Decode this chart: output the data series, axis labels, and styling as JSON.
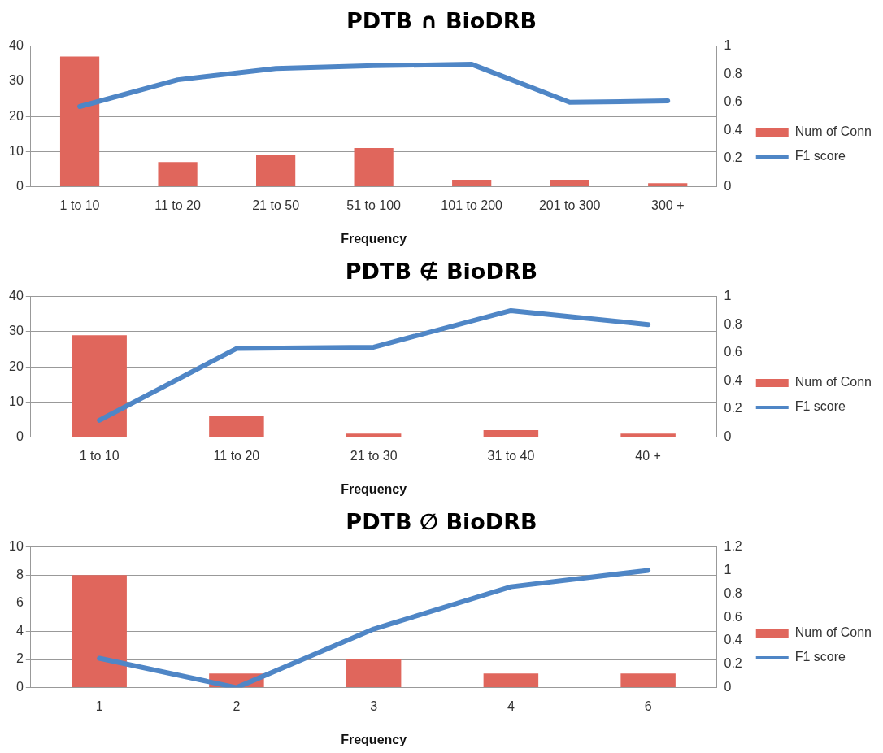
{
  "chart_data": [
    {
      "type": "bar",
      "title": "PDTB ∩ BioDRB",
      "xlabel": "Frequency",
      "categories": [
        "1 to 10",
        "11 to 20",
        "21 to 50",
        "51 to 100",
        "101 to 200",
        "201 to 300",
        "300 +"
      ],
      "series": [
        {
          "name": "Num of Conn",
          "color": "#e0665c",
          "values": [
            37,
            7,
            9,
            11,
            2,
            2,
            1
          ]
        },
        {
          "name": "F1 score",
          "type": "line",
          "axis": "y2",
          "color": "#4f86c6",
          "values": [
            0.57,
            0.76,
            0.84,
            0.86,
            0.87,
            0.6,
            0.61
          ]
        }
      ],
      "ylim": [
        0,
        40
      ],
      "yticks": [
        0,
        10,
        20,
        30,
        40
      ],
      "y2lim": [
        0,
        1
      ],
      "y2ticks": [
        0,
        0.2,
        0.4,
        0.6,
        0.8,
        1
      ],
      "grid": "y",
      "legend": "right",
      "marker": "none"
    },
    {
      "type": "bar",
      "title": "PDTB ∉ BioDRB",
      "xlabel": "Frequency",
      "categories": [
        "1 to 10",
        "11 to 20",
        "21 to 30",
        "31 to 40",
        "40 +"
      ],
      "series": [
        {
          "name": "Num of Conn",
          "color": "#e0665c",
          "values": [
            29,
            6,
            1,
            2,
            1
          ]
        },
        {
          "name": "F1 score",
          "type": "line",
          "axis": "y2",
          "color": "#4f86c6",
          "values": [
            0.12,
            0.63,
            0.64,
            0.9,
            0.8
          ]
        }
      ],
      "ylim": [
        0,
        40
      ],
      "yticks": [
        0,
        10,
        20,
        30,
        40
      ],
      "y2lim": [
        0,
        1
      ],
      "y2ticks": [
        0,
        0.2,
        0.4,
        0.6,
        0.8,
        1
      ],
      "grid": "y",
      "legend": "right",
      "marker": "none"
    },
    {
      "type": "bar",
      "title": "PDTB ∅ BioDRB",
      "xlabel": "Frequency",
      "categories": [
        "1",
        "2",
        "3",
        "4",
        "6"
      ],
      "series": [
        {
          "name": "Num of Conn",
          "color": "#e0665c",
          "values": [
            8,
            1,
            2,
            1,
            1
          ]
        },
        {
          "name": "F1 score",
          "type": "line",
          "axis": "y2",
          "color": "#4f86c6",
          "values": [
            0.25,
            0,
            0.5,
            0.86,
            1
          ]
        }
      ],
      "ylim": [
        0,
        10
      ],
      "yticks": [
        0,
        2,
        4,
        6,
        8,
        10
      ],
      "y2lim": [
        0,
        1.2
      ],
      "y2ticks": [
        0,
        0.2,
        0.4,
        0.6,
        0.8,
        1,
        1.2
      ],
      "grid": "y",
      "legend": "right",
      "marker": "none"
    }
  ]
}
